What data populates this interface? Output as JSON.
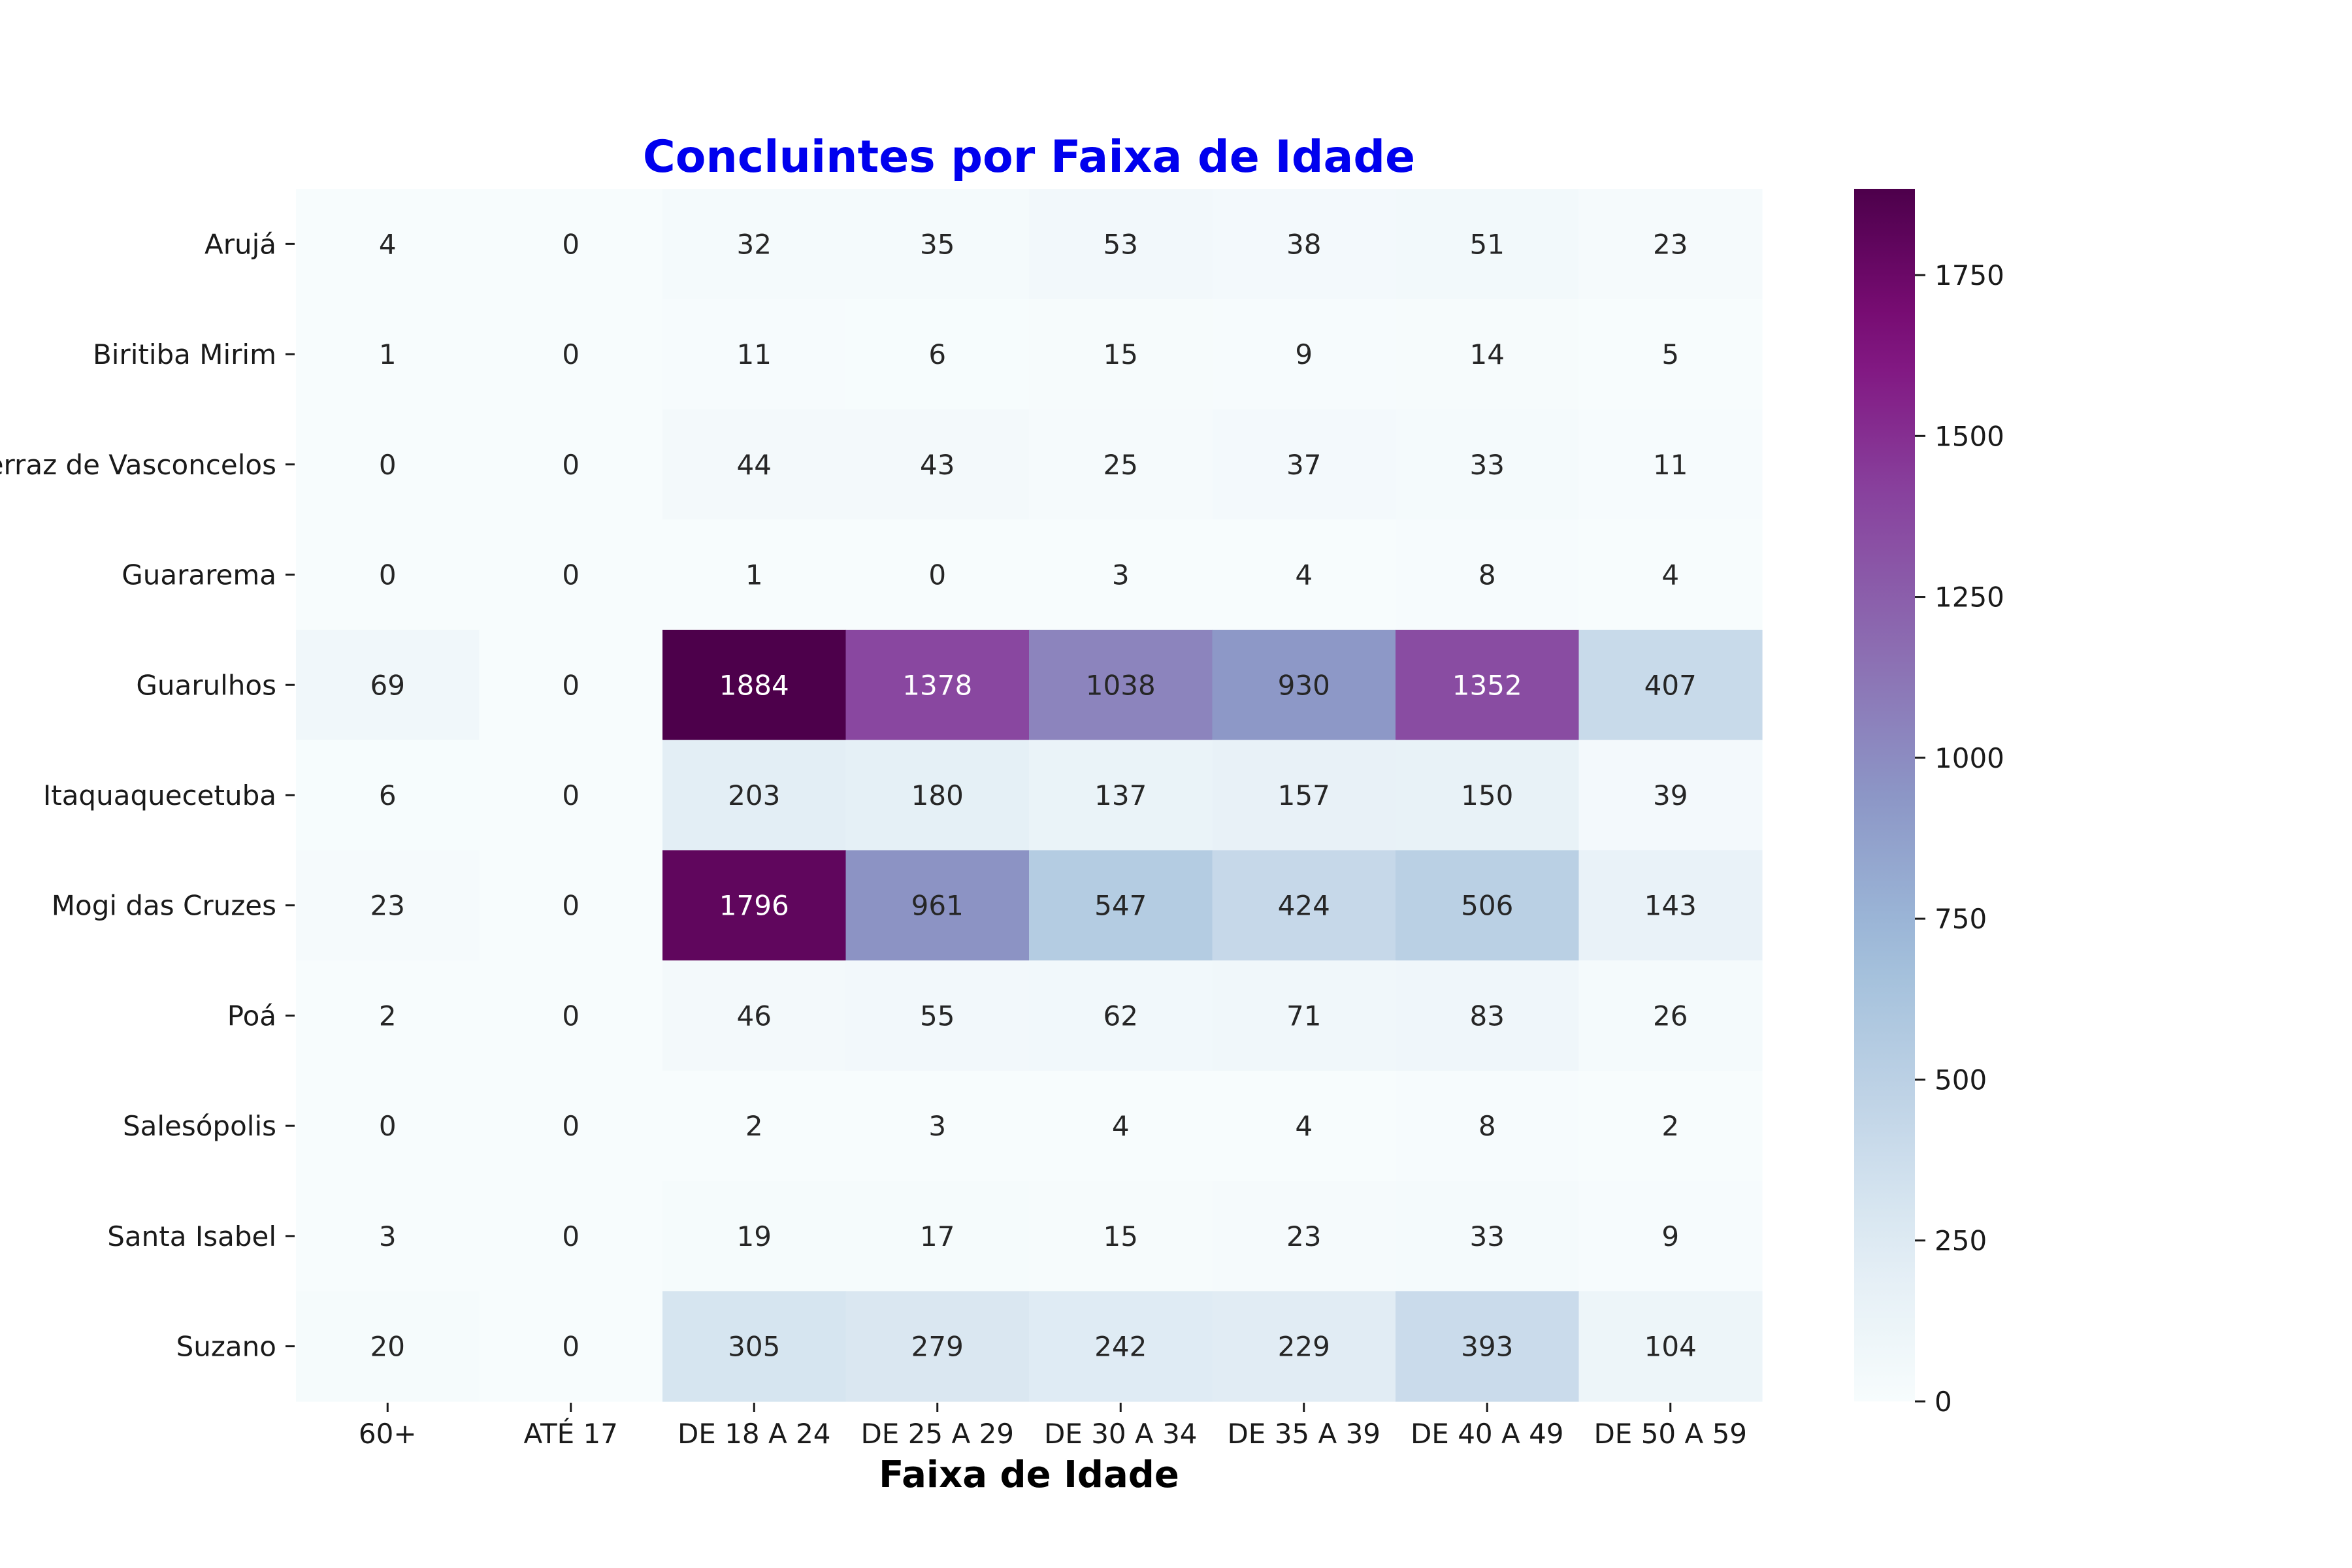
{
  "chart_data": {
    "type": "heatmap",
    "title": "Concluintes por Faixa de Idade",
    "title_color": "#0000ee",
    "xlabel": "Faixa de Idade",
    "ylabel": "",
    "colormap": "BuPu",
    "colorbar": {
      "min": 0,
      "max": 1884,
      "ticks": [
        0,
        250,
        500,
        750,
        1000,
        1250,
        1500,
        1750
      ]
    },
    "x_categories": [
      "60+",
      "ATÉ 17",
      "DE 18 A 24",
      "DE 25 A 29",
      "DE 30 A 34",
      "DE 35 A 39",
      "DE 40 A 49",
      "DE 50 A 59"
    ],
    "y_categories": [
      "Arujá",
      "Biritiba Mirim",
      "Ferraz de Vasconcelos",
      "Guararema",
      "Guarulhos",
      "Itaquaquecetuba",
      "Mogi das Cruzes",
      "Poá",
      "Salesópolis",
      "Santa Isabel",
      "Suzano"
    ],
    "values": [
      [
        4,
        0,
        32,
        35,
        53,
        38,
        51,
        23
      ],
      [
        1,
        0,
        11,
        6,
        15,
        9,
        14,
        5
      ],
      [
        0,
        0,
        44,
        43,
        25,
        37,
        33,
        11
      ],
      [
        0,
        0,
        1,
        0,
        3,
        4,
        8,
        4
      ],
      [
        69,
        0,
        1884,
        1378,
        1038,
        930,
        1352,
        407
      ],
      [
        6,
        0,
        203,
        180,
        137,
        157,
        150,
        39
      ],
      [
        23,
        0,
        1796,
        961,
        547,
        424,
        506,
        143
      ],
      [
        2,
        0,
        46,
        55,
        62,
        71,
        83,
        26
      ],
      [
        0,
        0,
        2,
        3,
        4,
        4,
        8,
        2
      ],
      [
        3,
        0,
        19,
        17,
        15,
        23,
        33,
        9
      ],
      [
        20,
        0,
        305,
        279,
        242,
        229,
        393,
        104
      ]
    ]
  }
}
